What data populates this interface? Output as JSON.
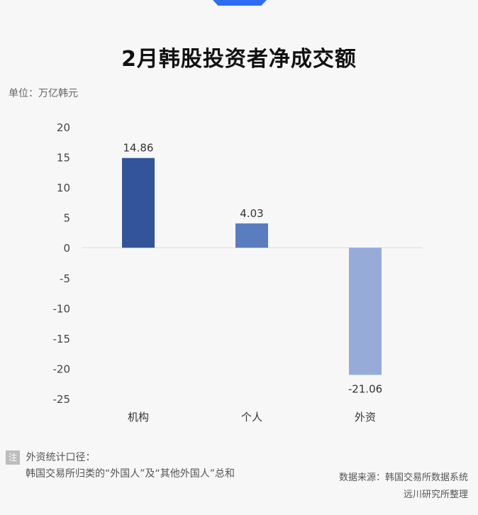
{
  "chart_data": {
    "type": "bar",
    "title": "2月韩股投资者净成交额",
    "unit_label": "单位：万亿韩元",
    "categories": [
      "机构",
      "个人",
      "外资"
    ],
    "values": [
      14.86,
      4.03,
      -21.06
    ],
    "value_labels": [
      "14.86",
      "4.03",
      "-21.06"
    ],
    "bar_colors": [
      "#34549a",
      "#5a7dc0",
      "#97abd9"
    ],
    "ylim": [
      -25,
      20
    ],
    "yticks": [
      20,
      15,
      10,
      5,
      0,
      -5,
      -10,
      -15,
      -20,
      -25
    ],
    "grid": false
  },
  "note": {
    "badge": "注",
    "line1": "外资统计口径：",
    "line2": "韩国交易所归类的“外国人”及“其他外国人”总和"
  },
  "source": {
    "line1": "数据来源：韩国交易所数据系统",
    "line2": "远川研究所整理"
  }
}
